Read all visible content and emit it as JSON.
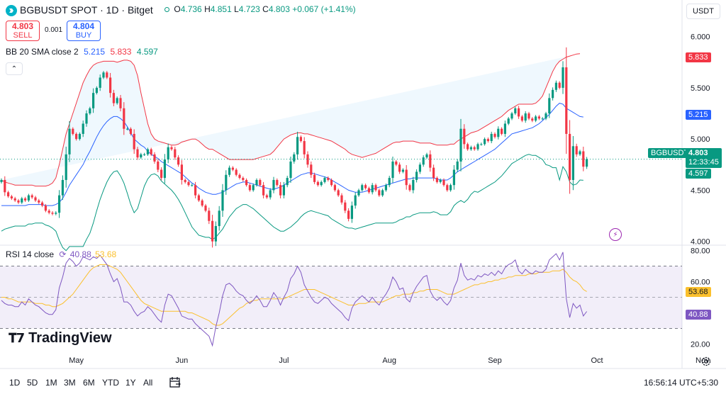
{
  "header": {
    "symbol": "BGBUSDT SPOT · 1D · Bitget",
    "ohlc": [
      {
        "key": "O",
        "value": "4.736"
      },
      {
        "key": "H",
        "value": "4.851"
      },
      {
        "key": "L",
        "value": "4.723"
      },
      {
        "key": "C",
        "value": "4.803"
      }
    ],
    "change": "+0.067 (+1.41%)",
    "currency": "USDT"
  },
  "trade": {
    "sell_price": "4.803",
    "sell_label": "SELL",
    "spread": "0.001",
    "buy_price": "4.804",
    "buy_label": "BUY"
  },
  "indicators": {
    "bb_label": "BB 20 SMA close 2",
    "bb_basis": "5.215",
    "bb_upper": "5.833",
    "bb_lower": "4.597",
    "rsi_label": "RSI 14 close",
    "rsi_value": "40.88",
    "rsi_ma": "53.68"
  },
  "price_tags": {
    "upper": "5.833",
    "basis": "5.215",
    "symbol": "BGBUSDT",
    "last": "4.803",
    "countdown": "12:33:45",
    "lower": "4.597",
    "rsi_ma": "53.68",
    "rsi": "40.88"
  },
  "timeframes": [
    "1D",
    "5D",
    "1M",
    "3M",
    "6M",
    "YTD",
    "1Y",
    "All"
  ],
  "clock": "16:56:14 UTC+5:30",
  "brand": "TradingView",
  "colors": {
    "up": "#089981",
    "down": "#f23645",
    "bb_basis": "#2962ff",
    "bb_upper": "#f23645",
    "bb_lower": "#089981",
    "rsi": "#7e57c2",
    "rsi_ma": "#fbc02d"
  },
  "chart_data": [
    {
      "type": "candlestick",
      "title": "BGBUSDT SPOT · 1D · Bitget",
      "x_ticks": [
        "May",
        "Jun",
        "Jul",
        "Aug",
        "Sep",
        "Oct",
        "Nov"
      ],
      "y_ticks": [
        "6.000",
        "5.500",
        "5.000",
        "4.500",
        "4.000"
      ],
      "ylim": [
        3.97,
        6.15
      ],
      "start_date": "2024-04-09",
      "tick_dates": [
        "2024-05-01",
        "2024-06-01",
        "2024-07-01",
        "2024-08-01",
        "2024-09-01",
        "2024-10-01",
        "2024-11-01"
      ],
      "close": [
        4.6,
        4.48,
        4.44,
        4.42,
        4.4,
        4.38,
        4.42,
        4.4,
        4.45,
        4.43,
        4.4,
        4.38,
        4.35,
        4.3,
        4.28,
        4.27,
        4.28,
        4.45,
        4.6,
        4.85,
        5.1,
        5.05,
        5.0,
        5.05,
        5.15,
        5.25,
        5.3,
        5.45,
        5.5,
        5.6,
        5.65,
        5.6,
        5.45,
        5.35,
        5.4,
        5.3,
        5.1,
        5.1,
        5.05,
        4.9,
        4.82,
        4.85,
        4.85,
        4.9,
        4.85,
        4.78,
        4.7,
        4.62,
        4.8,
        4.92,
        4.9,
        4.82,
        4.75,
        4.6,
        4.58,
        4.55,
        4.55,
        4.45,
        4.4,
        4.35,
        4.3,
        4.2,
        4.0,
        4.15,
        4.3,
        4.5,
        4.65,
        4.72,
        4.7,
        4.65,
        4.62,
        4.6,
        4.55,
        4.5,
        4.55,
        4.6,
        4.55,
        4.45,
        4.43,
        4.5,
        4.6,
        4.55,
        4.45,
        4.55,
        4.62,
        4.78,
        4.85,
        5.02,
        4.98,
        4.85,
        4.75,
        4.65,
        4.58,
        4.55,
        4.58,
        4.62,
        4.6,
        4.55,
        4.5,
        4.45,
        4.38,
        4.3,
        4.22,
        4.35,
        4.45,
        4.5,
        4.55,
        4.52,
        4.48,
        4.55,
        4.5,
        4.45,
        4.5,
        4.55,
        4.62,
        4.78,
        4.75,
        4.68,
        4.7,
        4.55,
        4.5,
        4.6,
        4.68,
        4.75,
        4.82,
        4.85,
        4.72,
        4.62,
        4.58,
        4.6,
        4.55,
        4.5,
        4.55,
        4.7,
        4.78,
        5.1,
        4.95,
        4.9,
        4.92,
        4.9,
        4.95,
        4.95,
        5.0,
        4.98,
        5.05,
        5.02,
        5.1,
        5.05,
        5.15,
        5.2,
        5.25,
        5.3,
        5.22,
        5.18,
        5.25,
        5.2,
        5.18,
        5.22,
        5.2,
        5.2,
        5.25,
        5.4,
        5.48,
        5.55,
        5.5,
        5.7,
        5.05,
        4.6,
        4.93,
        4.85,
        4.88,
        4.73,
        4.803
      ],
      "bb_upper": [
        4.6,
        4.58,
        4.57,
        4.56,
        4.55,
        4.55,
        4.55,
        4.55,
        4.55,
        4.55,
        4.54,
        4.54,
        4.54,
        4.54,
        4.55,
        4.57,
        4.62,
        4.75,
        4.9,
        5.05,
        5.15,
        5.25,
        5.35,
        5.45,
        5.55,
        5.62,
        5.68,
        5.72,
        5.74,
        5.75,
        5.76,
        5.76,
        5.76,
        5.76,
        5.75,
        5.76,
        5.77,
        5.77,
        5.76,
        5.72,
        5.62,
        5.45,
        5.3,
        5.15,
        5.05,
        5.0,
        4.98,
        4.97,
        4.96,
        4.95,
        4.94,
        4.94,
        4.95,
        4.97,
        4.98,
        4.99,
        5.0,
        5.0,
        4.98,
        4.95,
        4.92,
        4.9,
        4.9,
        4.88,
        4.86,
        4.84,
        4.82,
        4.8,
        4.8,
        4.8,
        4.8,
        4.8,
        4.8,
        4.8,
        4.8,
        4.81,
        4.82,
        4.83,
        4.84,
        4.85,
        4.88,
        4.92,
        4.96,
        5.0,
        5.02,
        5.04,
        5.05,
        5.06,
        5.06,
        5.05,
        5.05,
        5.04,
        5.03,
        5.02,
        5.01,
        5.0,
        4.99,
        4.98,
        4.96,
        4.94,
        4.92,
        4.9,
        4.87,
        4.85,
        4.84,
        4.83,
        4.82,
        4.83,
        4.84,
        4.85,
        4.86,
        4.88,
        4.9,
        4.92,
        4.94,
        4.96,
        4.97,
        4.97,
        4.98,
        4.98,
        4.98,
        4.98,
        4.97,
        4.96,
        4.96,
        4.96,
        4.96,
        4.95,
        4.94,
        4.94,
        4.94,
        4.94,
        4.95,
        4.95,
        4.98,
        5.0,
        5.02,
        5.04,
        5.06,
        5.07,
        5.08,
        5.1,
        5.12,
        5.14,
        5.16,
        5.18,
        5.2,
        5.22,
        5.25,
        5.28,
        5.3,
        5.32,
        5.34,
        5.34,
        5.34,
        5.34,
        5.34,
        5.35,
        5.38,
        5.42,
        5.5,
        5.58,
        5.66,
        5.72,
        5.76,
        5.78,
        5.8,
        5.81,
        5.82,
        5.83,
        5.833
      ],
      "bb_basis": [
        4.35,
        4.35,
        4.35,
        4.35,
        4.35,
        4.35,
        4.35,
        4.35,
        4.36,
        4.36,
        4.36,
        4.36,
        4.36,
        4.35,
        4.35,
        4.35,
        4.36,
        4.38,
        4.42,
        4.48,
        4.55,
        4.6,
        4.65,
        4.7,
        4.75,
        4.82,
        4.88,
        4.95,
        5.02,
        5.08,
        5.13,
        5.17,
        5.2,
        5.22,
        5.22,
        5.2,
        5.17,
        5.12,
        5.06,
        5.0,
        4.97,
        4.94,
        4.92,
        4.88,
        4.85,
        4.83,
        4.81,
        4.78,
        4.76,
        4.74,
        4.72,
        4.7,
        4.68,
        4.66,
        4.63,
        4.6,
        4.57,
        4.55,
        4.52,
        4.5,
        4.48,
        4.47,
        4.46,
        4.46,
        4.47,
        4.48,
        4.5,
        4.52,
        4.54,
        4.56,
        4.57,
        4.58,
        4.58,
        4.57,
        4.56,
        4.55,
        4.54,
        4.53,
        4.52,
        4.51,
        4.51,
        4.52,
        4.53,
        4.55,
        4.57,
        4.59,
        4.61,
        4.63,
        4.65,
        4.66,
        4.67,
        4.67,
        4.66,
        4.65,
        4.64,
        4.63,
        4.62,
        4.6,
        4.58,
        4.56,
        4.54,
        4.52,
        4.5,
        4.49,
        4.48,
        4.48,
        4.48,
        4.49,
        4.5,
        4.51,
        4.52,
        4.53,
        4.54,
        4.55,
        4.56,
        4.57,
        4.58,
        4.59,
        4.6,
        4.61,
        4.61,
        4.62,
        4.62,
        4.62,
        4.62,
        4.62,
        4.62,
        4.62,
        4.61,
        4.6,
        4.6,
        4.6,
        4.62,
        4.65,
        4.68,
        4.7,
        4.72,
        4.74,
        4.76,
        4.78,
        4.8,
        4.82,
        4.84,
        4.86,
        4.88,
        4.9,
        4.93,
        4.96,
        4.99,
        5.02,
        5.05,
        5.06,
        5.07,
        5.08,
        5.09,
        5.1,
        5.11,
        5.13,
        5.15,
        5.18,
        5.21,
        5.24,
        5.28,
        5.32,
        5.35,
        5.34,
        5.3,
        5.28,
        5.26,
        5.24,
        5.22,
        5.215
      ],
      "bb_lower": [
        4.1,
        4.12,
        4.13,
        4.14,
        4.15,
        4.15,
        4.15,
        4.15,
        4.17,
        4.17,
        4.18,
        4.18,
        4.18,
        4.16,
        4.15,
        4.13,
        4.1,
        4.01,
        3.94,
        3.91,
        3.95,
        3.95,
        3.95,
        3.95,
        3.95,
        4.02,
        4.08,
        4.18,
        4.3,
        4.41,
        4.5,
        4.58,
        4.64,
        4.68,
        4.69,
        4.64,
        4.57,
        4.47,
        4.36,
        4.28,
        4.32,
        4.43,
        4.54,
        4.61,
        4.65,
        4.66,
        4.64,
        4.59,
        4.56,
        4.53,
        4.5,
        4.46,
        4.41,
        4.35,
        4.28,
        4.21,
        4.14,
        4.1,
        4.06,
        4.05,
        4.04,
        4.04,
        4.02,
        4.04,
        4.08,
        4.12,
        4.18,
        4.24,
        4.28,
        4.32,
        4.34,
        4.36,
        4.36,
        4.34,
        4.32,
        4.29,
        4.26,
        4.23,
        4.2,
        4.17,
        4.14,
        4.12,
        4.1,
        4.1,
        4.12,
        4.14,
        4.17,
        4.2,
        4.24,
        4.27,
        4.29,
        4.3,
        4.29,
        4.28,
        4.27,
        4.26,
        4.25,
        4.22,
        4.2,
        4.18,
        4.16,
        4.14,
        4.13,
        4.13,
        4.12,
        4.13,
        4.14,
        4.15,
        4.16,
        4.17,
        4.18,
        4.18,
        4.18,
        4.18,
        4.18,
        4.18,
        4.19,
        4.21,
        4.22,
        4.24,
        4.24,
        4.26,
        4.27,
        4.28,
        4.28,
        4.28,
        4.28,
        4.29,
        4.28,
        4.26,
        4.26,
        4.26,
        4.29,
        4.35,
        4.38,
        4.4,
        4.38,
        4.41,
        4.46,
        4.49,
        4.48,
        4.5,
        4.52,
        4.54,
        4.56,
        4.58,
        4.61,
        4.64,
        4.68,
        4.72,
        4.76,
        4.78,
        4.8,
        4.82,
        4.84,
        4.85,
        4.84,
        4.84,
        4.82,
        4.8,
        4.75,
        4.74,
        4.72,
        4.72,
        4.6,
        4.73,
        4.68,
        4.58,
        4.55,
        4.56,
        4.6,
        4.597
      ],
      "rsi": [
        48,
        46,
        45,
        45,
        44,
        44,
        47,
        45,
        49,
        47,
        45,
        44,
        42,
        40,
        39,
        39,
        42,
        56,
        63,
        72,
        75,
        73,
        70,
        72,
        76,
        75,
        74,
        76,
        75,
        77,
        74,
        71,
        65,
        60,
        62,
        56,
        47,
        47,
        45,
        41,
        38,
        40,
        41,
        44,
        42,
        39,
        36,
        34,
        45,
        52,
        51,
        47,
        43,
        38,
        37,
        36,
        36,
        33,
        31,
        29,
        27,
        25,
        19,
        31,
        40,
        51,
        58,
        59,
        57,
        54,
        52,
        51,
        48,
        46,
        48,
        51,
        48,
        44,
        44,
        48,
        53,
        50,
        45,
        50,
        54,
        62,
        65,
        70,
        66,
        58,
        54,
        50,
        47,
        46,
        48,
        50,
        49,
        46,
        44,
        42,
        40,
        37,
        35,
        43,
        47,
        49,
        51,
        49,
        47,
        50,
        47,
        45,
        49,
        52,
        56,
        63,
        60,
        55,
        56,
        49,
        47,
        53,
        57,
        60,
        63,
        64,
        54,
        50,
        48,
        50,
        47,
        45,
        48,
        56,
        61,
        72,
        64,
        61,
        62,
        61,
        64,
        63,
        65,
        64,
        66,
        64,
        67,
        65,
        69,
        71,
        72,
        74,
        67,
        65,
        68,
        66,
        65,
        67,
        66,
        66,
        68,
        74,
        76,
        78,
        74,
        79,
        49,
        37,
        46,
        43,
        45,
        38,
        40.88
      ],
      "rsi_ma": [
        50,
        50,
        49,
        49,
        48,
        47,
        47,
        47,
        47,
        47,
        46,
        46,
        46,
        45,
        45,
        44,
        44,
        45,
        46,
        48,
        50,
        52,
        55,
        58,
        61,
        64,
        67,
        69,
        70,
        71,
        71,
        71,
        70,
        69,
        68,
        66,
        63,
        60,
        57,
        54,
        51,
        48,
        46,
        45,
        44,
        43,
        42,
        41,
        41,
        41,
        41,
        41,
        41,
        41,
        41,
        40,
        40,
        39,
        38,
        37,
        36,
        35,
        33,
        32,
        32,
        33,
        35,
        37,
        39,
        41,
        43,
        44,
        46,
        47,
        48,
        48,
        49,
        49,
        49,
        49,
        49,
        49,
        49,
        49,
        50,
        51,
        52,
        53,
        54,
        55,
        55,
        55,
        55,
        54,
        53,
        52,
        51,
        50,
        49,
        48,
        47,
        46,
        45,
        45,
        45,
        46,
        46,
        46,
        47,
        47,
        47,
        47,
        47,
        48,
        49,
        50,
        51,
        51,
        52,
        52,
        52,
        53,
        53,
        54,
        54,
        55,
        55,
        55,
        55,
        54,
        53,
        52,
        52,
        52,
        53,
        54,
        55,
        56,
        57,
        58,
        58,
        59,
        59,
        60,
        60,
        61,
        61,
        62,
        62,
        63,
        63,
        64,
        64,
        64,
        64,
        65,
        65,
        65,
        66,
        66,
        66,
        66,
        67,
        67,
        67,
        68,
        66,
        63,
        61,
        60,
        58,
        55,
        53.68
      ],
      "rsi_ylim": [
        17,
        83
      ],
      "rsi_y_ticks": [
        "80.00",
        "60.00",
        "40.00",
        "20.00"
      ],
      "rsi_bands": [
        70,
        30
      ]
    }
  ]
}
